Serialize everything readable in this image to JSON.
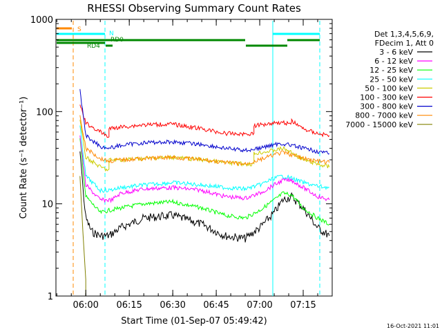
{
  "chart_data": {
    "type": "line",
    "title": "RHESSI Observing Summary Count Rates",
    "xlabel": "Start Time (01-Sep-07 05:49:42)",
    "ylabel": "Count Rate (s⁻¹ detector⁻¹)",
    "y_scale": "log",
    "ylim": [
      1,
      1000
    ],
    "xlim": [
      "05:49:42",
      "07:25:00"
    ],
    "x_ticks": [
      "06:00",
      "06:15",
      "06:30",
      "06:45",
      "07:00",
      "07:15"
    ],
    "y_ticks": [
      "1",
      "10",
      "100",
      "1000"
    ],
    "legend": {
      "position": "right",
      "header": [
        "Det 1,3,4,5,6,9,",
        "FDecim 1, Att 0"
      ]
    },
    "series": [
      {
        "name": "3 - 6 keV",
        "color": "#000000",
        "x": [
          "05:58",
          "05:59",
          "06:00",
          "06:02",
          "06:05",
          "06:08",
          "06:12",
          "06:20",
          "06:30",
          "06:40",
          "06:48",
          "06:55",
          "07:00",
          "07:05",
          "07:08",
          "07:11",
          "07:15",
          "07:20",
          "07:24"
        ],
        "values": [
          40,
          15,
          7,
          5,
          4.5,
          4.5,
          5.5,
          7,
          7.5,
          6,
          4.5,
          4.2,
          5.5,
          8,
          11,
          12,
          9,
          5.5,
          4.5
        ]
      },
      {
        "name": "6 - 12 keV",
        "color": "#ff00ff",
        "x": [
          "05:58",
          "06:00",
          "06:05",
          "06:08",
          "06:09",
          "06:12",
          "06:20",
          "06:30",
          "06:40",
          "06:48",
          "06:55",
          "07:00",
          "07:05",
          "07:08",
          "07:11",
          "07:15",
          "07:20",
          "07:24"
        ],
        "values": [
          55,
          16,
          11,
          11,
          11,
          13,
          14.5,
          15,
          14,
          12,
          11.5,
          13,
          16,
          18,
          18,
          15,
          12,
          11
        ]
      },
      {
        "name": "12 - 25 keV",
        "color": "#00ff00",
        "x": [
          "05:58",
          "06:00",
          "06:05",
          "06:08",
          "06:12",
          "06:20",
          "06:30",
          "06:40",
          "06:48",
          "06:55",
          "07:00",
          "07:05",
          "07:08",
          "07:11",
          "07:15",
          "07:20",
          "07:24"
        ],
        "values": [
          50,
          12,
          8,
          8.5,
          9,
          10,
          10.5,
          9,
          7.5,
          7,
          8.5,
          11,
          13,
          12.5,
          9,
          7,
          6
        ]
      },
      {
        "name": "25 - 50 keV",
        "color": "#00ffff",
        "x": [
          "05:58",
          "06:00",
          "06:05",
          "06:08",
          "06:12",
          "06:20",
          "06:30",
          "06:40",
          "06:48",
          "06:55",
          "07:00",
          "07:05",
          "07:08",
          "07:11",
          "07:15",
          "07:20",
          "07:24"
        ],
        "values": [
          70,
          20,
          14,
          14,
          15,
          16,
          17,
          16,
          15,
          14.5,
          16,
          19,
          20,
          19,
          17,
          15.5,
          15
        ]
      },
      {
        "name": "50 - 100 keV",
        "color": "#cccc00",
        "x": [
          "05:58",
          "06:00",
          "06:05",
          "06:08",
          "06:08",
          "06:12",
          "06:20",
          "06:30",
          "06:40",
          "06:48",
          "06:55",
          "06:58",
          "06:58",
          "07:05",
          "07:08",
          "07:11",
          "07:15",
          "07:20",
          "07:24"
        ],
        "values": [
          80,
          32,
          25,
          23,
          30,
          30,
          31,
          32,
          30,
          28,
          27,
          27,
          35,
          38,
          40,
          36,
          30,
          27,
          25
        ]
      },
      {
        "name": "100 - 300 keV",
        "color": "#ff0000",
        "x": [
          "05:58",
          "06:00",
          "06:05",
          "06:08",
          "06:08",
          "06:12",
          "06:20",
          "06:30",
          "06:40",
          "06:48",
          "06:55",
          "06:58",
          "06:58",
          "07:05",
          "07:08",
          "07:11",
          "07:11",
          "07:15",
          "07:20",
          "07:24"
        ],
        "values": [
          120,
          75,
          60,
          53,
          65,
          68,
          72,
          73,
          65,
          58,
          57,
          58,
          70,
          76,
          76,
          74,
          80,
          65,
          58,
          55
        ]
      },
      {
        "name": "300 - 800 keV",
        "color": "#0000cc",
        "x": [
          "05:58",
          "06:00",
          "06:05",
          "06:08",
          "06:12",
          "06:20",
          "06:30",
          "06:40",
          "06:48",
          "06:55",
          "07:00",
          "07:05",
          "07:08",
          "07:11",
          "07:15",
          "07:20",
          "07:24"
        ],
        "values": [
          170,
          55,
          42,
          40,
          43,
          46,
          47,
          44,
          40,
          38,
          40,
          44,
          45,
          43,
          40,
          37,
          35
        ]
      },
      {
        "name": "800 - 7000 keV",
        "color": "#ff8800",
        "x": [
          "05:58",
          "06:00",
          "06:05",
          "06:08",
          "06:12",
          "06:20",
          "06:30",
          "06:40",
          "06:48",
          "06:55",
          "07:00",
          "07:05",
          "07:08",
          "07:11",
          "07:15",
          "07:20",
          "07:24"
        ],
        "values": [
          90,
          40,
          31,
          29,
          30,
          31,
          32,
          30,
          28,
          27,
          30,
          34,
          36,
          34,
          31,
          29,
          28
        ]
      },
      {
        "name": "7000 - 15000 keV",
        "color": "#808000",
        "x": [
          "05:58",
          "05:59",
          "06:00",
          "06:00"
        ],
        "values": [
          20,
          5,
          1.5,
          1
        ]
      }
    ],
    "flag_bars": [
      {
        "label": "S",
        "color": "#ff8800"
      },
      {
        "label": "N",
        "color": "#00ffff"
      },
      {
        "label": "RD0",
        "color": "#008800"
      },
      {
        "label": "RD4",
        "color": "#008800"
      }
    ]
  },
  "timestamp": "16-Oct-2021 11:01"
}
